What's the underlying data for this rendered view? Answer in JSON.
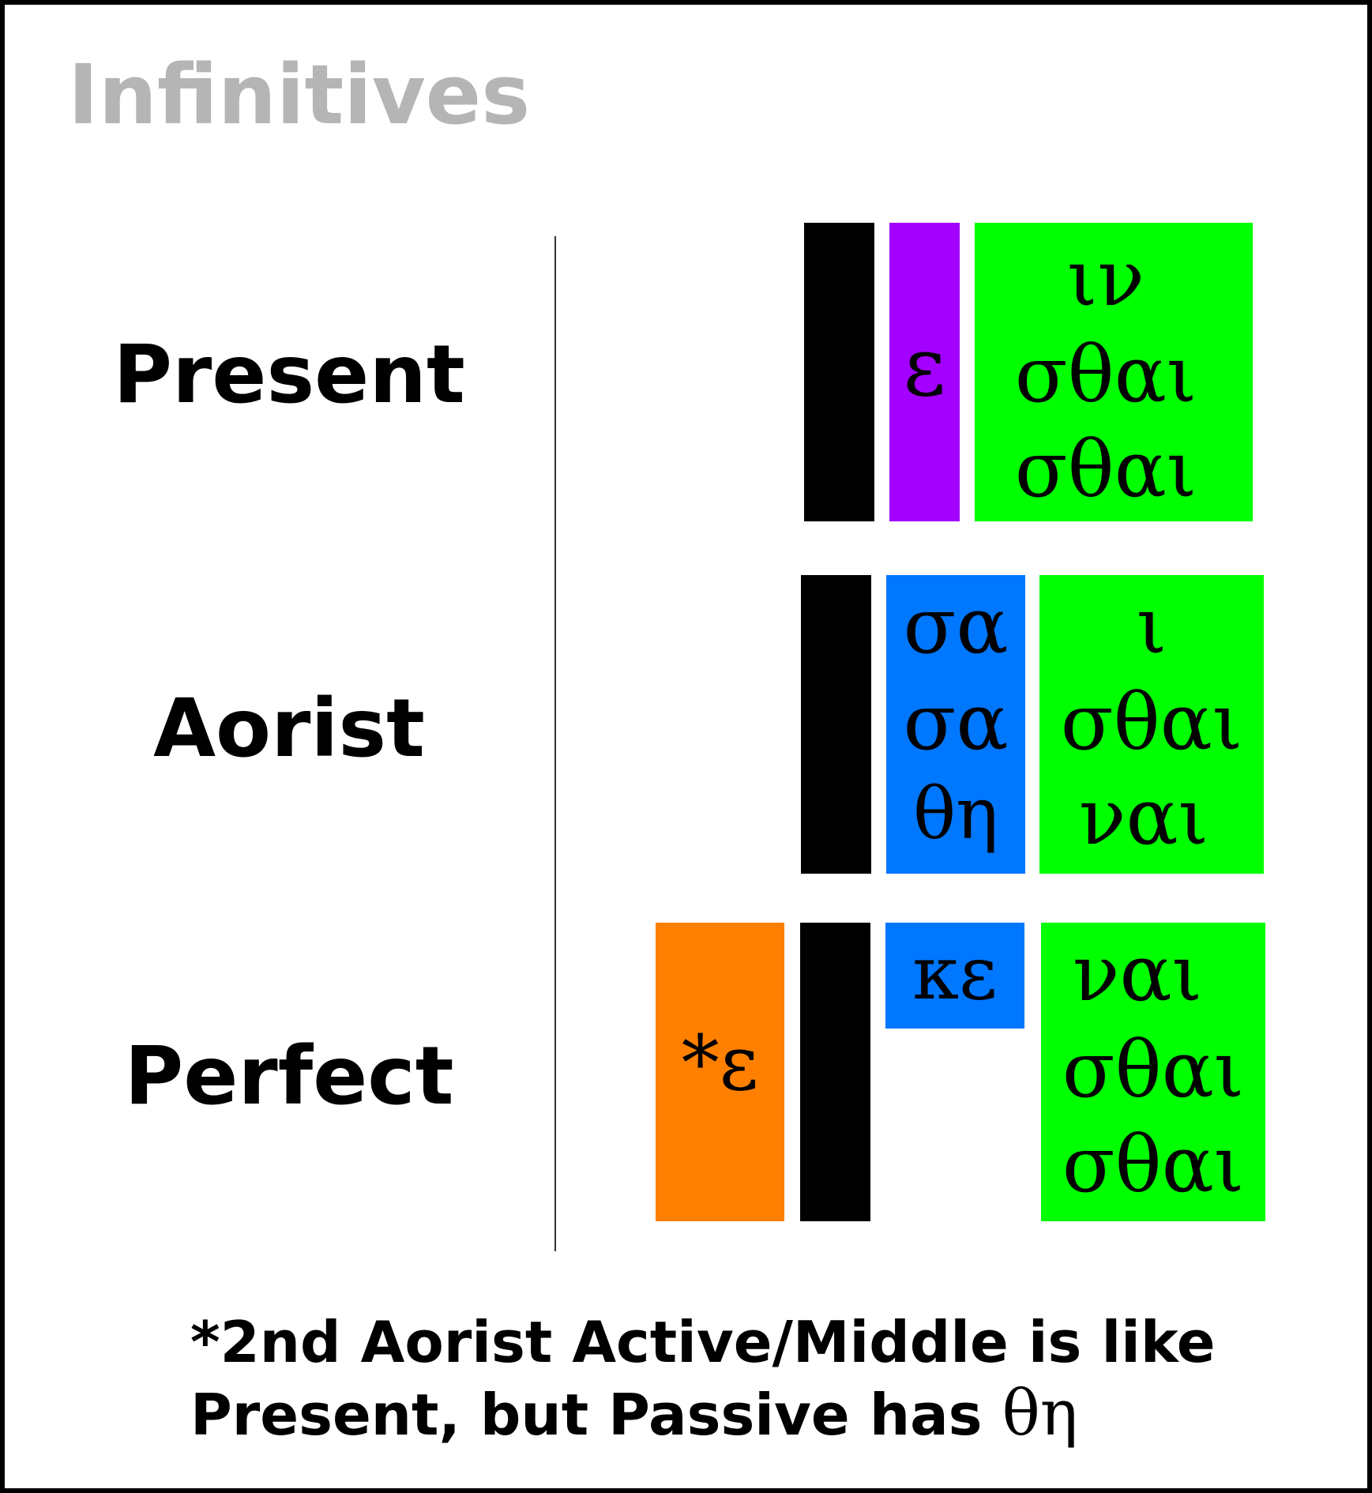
{
  "title": "Infinitives",
  "colors": {
    "stem": "#000000",
    "augment": "#a400ff",
    "tense_marker": "#0077ff",
    "ending": "#00ff00",
    "reduplication": "#ff8000",
    "title": "#b5b5b5"
  },
  "rows": {
    "present": {
      "label": "Present",
      "connecting_vowel": "ε",
      "endings": [
        "ιν",
        "σθαι",
        "σθαι"
      ]
    },
    "aorist": {
      "label": "Aorist",
      "tense_markers": [
        "σα",
        "σα",
        "θη"
      ],
      "endings": [
        "ι",
        "σθαι",
        "ναι"
      ]
    },
    "perfect": {
      "label": "Perfect",
      "reduplication": "*ε",
      "tense_marker": "κε",
      "endings": [
        "ναι",
        "σθαι",
        "σθαι"
      ]
    }
  },
  "footnote": {
    "line1": "*2nd Aorist Active/Middle is like",
    "line2": "Present, but Passive has",
    "greek": "θη"
  }
}
